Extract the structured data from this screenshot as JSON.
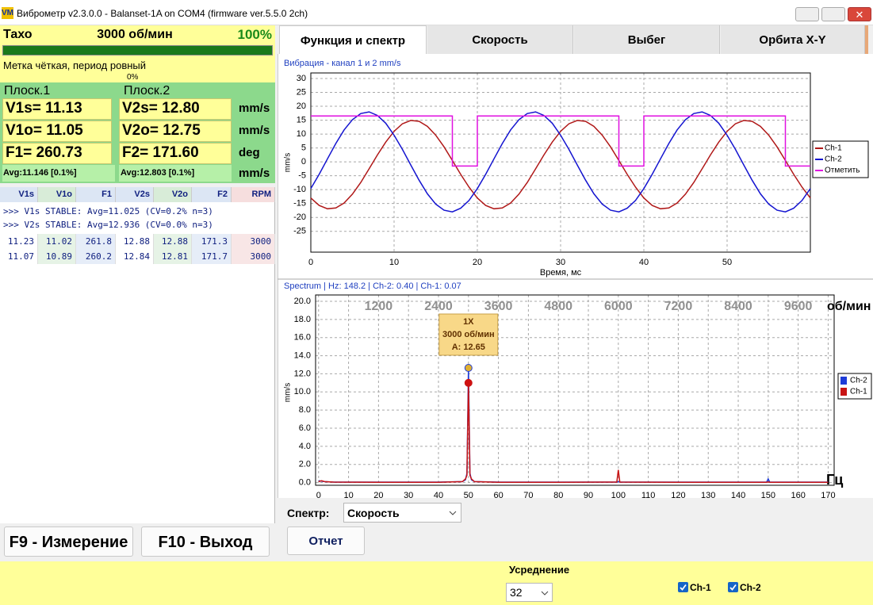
{
  "window": {
    "title": "Виброметр v2.3.0.0 - Balanset-1A on COM4 (firmware ver.5.5.0 2ch)"
  },
  "tacho": {
    "label": "Тахо",
    "rpm": "3000 об/мин",
    "percent": "100%",
    "status": "Метка чёткая, период ровный",
    "progress": "0%"
  },
  "planes": [
    {
      "name": "Плоск.1",
      "rows": [
        "V1s= 11.13",
        "V1o= 11.05",
        "F1= 260.73"
      ],
      "avg": "Avg:11.146 [0.1%]"
    },
    {
      "name": "Плоск.2",
      "rows": [
        "V2s= 12.80",
        "V2o= 12.75",
        "F2= 171.60"
      ],
      "avg": "Avg:12.803 [0.1%]"
    }
  ],
  "units": [
    "mm/s",
    "mm/s",
    "deg",
    "mm/s"
  ],
  "log": {
    "columns": [
      "V1s",
      "V1o",
      "F1",
      "V2s",
      "V2o",
      "F2",
      "RPM"
    ],
    "messages": [
      ">>> V1s STABLE: Avg=11.025 (CV=0.2% n=3)",
      ">>> V2s STABLE: Avg=12.936 (CV=0.0% n=3)"
    ],
    "rows": [
      [
        "11.23",
        "11.02",
        "261.8",
        "12.88",
        "12.88",
        "171.3",
        "3000"
      ],
      [
        "11.07",
        "10.89",
        "260.2",
        "12.84",
        "12.81",
        "171.7",
        "3000"
      ]
    ]
  },
  "buttons": [
    "F9 - Измерение",
    "F10 - Выход"
  ],
  "tabs": [
    "Функция и спектр",
    "Скорость",
    "Выбег",
    "Орбита X-Y"
  ],
  "chart_data": [
    {
      "type": "line",
      "title": "Вибрация  - канал 1 и 2 mm/s",
      "x_label": "Время, мс",
      "y_label": "mm/s",
      "xlim": [
        0,
        60
      ],
      "ylim": [
        -32.5,
        32
      ],
      "xticks": [
        0,
        10,
        20,
        30,
        40,
        50
      ],
      "yticks": [
        30,
        25,
        20,
        15,
        10,
        5,
        0,
        -5,
        -10,
        -15,
        -20,
        -25
      ],
      "grid": true,
      "legend": "right",
      "legend_symbol": "line",
      "x": [
        0,
        1,
        2,
        3,
        4,
        5,
        6,
        7,
        8,
        9,
        10,
        11,
        12,
        13,
        14,
        15,
        16,
        17,
        18,
        19,
        20,
        21,
        22,
        23,
        24,
        25,
        26,
        27,
        28,
        29,
        30,
        31,
        32,
        33,
        34,
        35,
        36,
        37,
        38,
        39,
        40,
        41,
        42,
        43,
        44,
        45,
        46,
        47,
        48,
        49,
        50,
        51,
        52,
        53,
        54,
        55,
        56,
        57,
        58,
        59,
        60
      ],
      "series": [
        {
          "name": "Ch-1",
          "color": "#b01818",
          "values": [
            -13,
            -15.7,
            -16.9,
            -16.6,
            -14.8,
            -11.6,
            -7.4,
            -2.5,
            2.5,
            7.1,
            11,
            13.7,
            14.9,
            14.6,
            12.8,
            9.6,
            5.4,
            0.5,
            -4.5,
            -9.1,
            -13,
            -15.7,
            -16.9,
            -16.6,
            -14.8,
            -11.6,
            -7.4,
            -2.5,
            2.5,
            7.1,
            11,
            13.7,
            14.9,
            14.6,
            12.8,
            9.6,
            5.4,
            0.5,
            -4.5,
            -9.1,
            -13,
            -15.7,
            -16.9,
            -16.6,
            -14.8,
            -11.6,
            -7.4,
            -2.5,
            2.5,
            7.1,
            11,
            13.7,
            14.9,
            14.6,
            12.8,
            9.6,
            5.4,
            0.5,
            -4.5,
            -9.1,
            -13
          ]
        },
        {
          "name": "Ch-2",
          "color": "#1414d0",
          "values": [
            -9.6,
            -4.5,
            1.1,
            6.6,
            11.5,
            15.2,
            17.4,
            18,
            16.7,
            13.9,
            9.6,
            4.5,
            -1.1,
            -6.6,
            -11.5,
            -15.2,
            -17.4,
            -18,
            -16.7,
            -13.9,
            -9.6,
            -4.5,
            1.1,
            6.6,
            11.5,
            15.2,
            17.4,
            18,
            16.7,
            13.9,
            9.6,
            4.5,
            -1.1,
            -6.6,
            -11.5,
            -15.2,
            -17.4,
            -18,
            -16.7,
            -13.9,
            -9.6,
            -4.5,
            1.1,
            6.6,
            11.5,
            15.2,
            17.4,
            18,
            16.7,
            13.9,
            9.6,
            4.5,
            -1.1,
            -6.6,
            -11.5,
            -15.2,
            -17.4,
            -18,
            -16.7,
            -13.9,
            -9.6
          ]
        },
        {
          "name": "Отметить",
          "color": "#e010e0",
          "x": [
            0,
            17,
            17,
            20,
            20,
            37,
            37,
            40,
            40,
            57,
            57,
            60
          ],
          "values": [
            16.5,
            16.5,
            -1.5,
            -1.5,
            16.5,
            16.5,
            -1.5,
            -1.5,
            16.5,
            16.5,
            -1.5,
            -1.5
          ]
        }
      ]
    },
    {
      "type": "line",
      "title": "Spectrum | Hz: 148.2 | Ch-2: 0.40 | Ch-1: 0.07",
      "x_label": "Гц",
      "y_label": "mm/s",
      "x2_label": "об/мин",
      "xlim": [
        -1,
        172
      ],
      "ylim": [
        -0.3,
        20.7
      ],
      "xticks": [
        0,
        10,
        20,
        30,
        40,
        50,
        60,
        70,
        80,
        90,
        100,
        110,
        120,
        130,
        140,
        150,
        160,
        170
      ],
      "yticks": [
        {
          "value": 0,
          "label": "0.0"
        },
        {
          "value": 2,
          "label": "2.0"
        },
        {
          "value": 4,
          "label": "4.0"
        },
        {
          "value": 6,
          "label": "6.0"
        },
        {
          "value": 8,
          "label": "8.0"
        },
        {
          "value": 10,
          "label": "10.0"
        },
        {
          "value": 12,
          "label": "12.0"
        },
        {
          "value": 14,
          "label": "14.0"
        },
        {
          "value": 16,
          "label": "16.0"
        },
        {
          "value": 18,
          "label": "18.0"
        },
        {
          "value": 20,
          "label": "20.0"
        }
      ],
      "x2lim": [
        -60,
        10320
      ],
      "x2ticks": [
        1200,
        2400,
        3600,
        4800,
        6000,
        7200,
        8400,
        9600
      ],
      "grid": true,
      "legend": "right",
      "legend_symbol": "square",
      "peak_markers": true,
      "annotation": [
        "1X",
        "3000 об/мин",
        "A: 12.65"
      ],
      "x": [
        0,
        1,
        2,
        5,
        20,
        40,
        48,
        49,
        49.5,
        50,
        50.5,
        51,
        52,
        60,
        80,
        99.5,
        100,
        100.5,
        120,
        149.5,
        150,
        150.5,
        170
      ],
      "series": [
        {
          "name": "Ch-2",
          "color": "#1e3cd8",
          "marker_color": "#e0b030",
          "values": [
            0.2,
            0.15,
            0.1,
            0.05,
            0.05,
            0.05,
            0.1,
            0.3,
            1,
            12.65,
            1,
            0.3,
            0.1,
            0.05,
            0.05,
            0.05,
            0.1,
            0.05,
            0.05,
            0.05,
            0.4,
            0.05,
            0.05
          ]
        },
        {
          "name": "Ch-1",
          "color": "#c81414",
          "marker_color": "#d01010",
          "values": [
            0.1,
            0.2,
            0.1,
            0.05,
            0.03,
            0.03,
            0.1,
            0.4,
            0.8,
            11,
            0.8,
            0.4,
            0.1,
            0.03,
            0.03,
            0.05,
            1.4,
            0.05,
            0.03,
            0.03,
            0.07,
            0.03,
            0.03
          ]
        }
      ]
    }
  ],
  "controls": {
    "spectrum_label": "Спектр:",
    "spectrum_value": "Скорость",
    "report": "Отчет"
  },
  "footer": {
    "averaging": "Усреднение",
    "averaging_value": "32",
    "channels": [
      "Ch-1",
      "Ch-2"
    ]
  }
}
